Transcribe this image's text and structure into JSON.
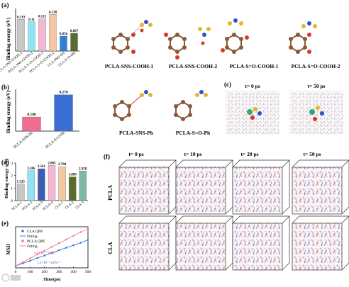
{
  "panels": {
    "a": {
      "label": "(a)",
      "chart_data": {
        "type": "bar",
        "ylabel": "Binding energy (eV)",
        "categories": [
          "PCLA-SNS-COOH-1",
          "PCLA-SNS-COOH-2",
          "PCLA-S=O-COOH-1",
          "PCLA-S=O-COOH-2",
          "CLA-SNS-OH",
          "CLA-S=O-OH"
        ],
        "values": [
          0.119,
          0.11,
          0.121,
          0.138,
          0.056,
          0.067
        ],
        "value_labels": [
          "0.119",
          "0.11",
          "0.121",
          "0.138",
          "0.056",
          "0.067"
        ],
        "colors": [
          "#c8c8c8",
          "#8fe3f2",
          "#f5b6d2",
          "#f4c7a0",
          "#2f7fd8",
          "#5a6b2e"
        ],
        "ylim": [
          0,
          0.16
        ],
        "grid": false
      }
    },
    "b": {
      "label": "(b)",
      "chart_data": {
        "type": "bar",
        "ylabel": "Binding energy (eV)",
        "categories": [
          "PCLA-SNS-Ph",
          "PCLA-S=O-Ph"
        ],
        "values": [
          0.108,
          0.278
        ],
        "value_labels": [
          "0.108",
          "0.278"
        ],
        "colors": [
          "#f06c90",
          "#3c6fd6"
        ],
        "ylim": [
          0,
          0.32
        ],
        "grid": false
      }
    },
    "structures_top": [
      "PCLA-SNS-COOH-1",
      "PCLA-SNS-COOH-2",
      "PCLA-S=O-COOH-1",
      "PCLA-S=O-COOH-2"
    ],
    "structures_mid": [
      "PCLA-SNS-Ph",
      "PCLA-S=O-Ph"
    ],
    "c": {
      "label": "(c)",
      "times": [
        "t= 0 ps",
        "t= 50 ps"
      ]
    },
    "d": {
      "label": "(d)",
      "chart_data": {
        "type": "bar",
        "ylabel": "Binding energy (eV)",
        "categories": [
          "PCLA-1",
          "PCLA-2",
          "PCLA-3",
          "PCLA-4",
          "CLA-1",
          "CLA-2",
          "CLA-3"
        ],
        "values": [
          1.325,
          2.386,
          2.541,
          2.805,
          2.708,
          1.889,
          2.358
        ],
        "value_labels": [
          "1.325",
          "2.386",
          "2.541",
          "2.805",
          "2.708",
          "1.889",
          "2.358"
        ],
        "colors": [
          "#c8c8c8",
          "#8fe3f2",
          "#3a5fb0",
          "#f5b6d2",
          "#f4c7a0",
          "#5a6b2e",
          "#7fb7a0"
        ],
        "yticks": [
          "0",
          "1",
          "2",
          "3"
        ],
        "ylim": [
          0,
          3
        ],
        "grid": false
      }
    },
    "e": {
      "label": "(e)",
      "chart_data": {
        "type": "line",
        "xlabel": "Time(ps)",
        "ylabel": "MSD",
        "xticks": [
          "0",
          "100",
          "200",
          "300",
          "400",
          "500"
        ],
        "xlim": [
          0,
          500
        ],
        "ylim": [
          0,
          1
        ],
        "legend": [
          "CLA QPE",
          "Fitting",
          "PCLA QPE",
          "Fitting"
        ],
        "legend_position": "top-left",
        "annotations": [
          "2.3×10⁻⁹ cm²s⁻¹",
          "1.3×10⁻⁹ cm²s⁻¹"
        ],
        "series": [
          {
            "name": "CLA QPE",
            "color": "#3b7bd4",
            "x": [
              0,
              50,
              100,
              150,
              200,
              250,
              300,
              350,
              400,
              450,
              500
            ],
            "y": [
              0.05,
              0.11,
              0.17,
              0.24,
              0.3,
              0.36,
              0.43,
              0.49,
              0.55,
              0.61,
              0.68
            ]
          },
          {
            "name": "PCLA QPE",
            "color": "#f27aa0",
            "x": [
              0,
              50,
              100,
              150,
              200,
              250,
              300,
              350,
              400,
              450,
              500
            ],
            "y": [
              0.05,
              0.14,
              0.23,
              0.33,
              0.42,
              0.51,
              0.6,
              0.69,
              0.78,
              0.87,
              0.95
            ]
          }
        ]
      }
    },
    "f": {
      "label": "(f)",
      "times": [
        "t= 0 ps",
        "t= 10 ps",
        "t= 20 ps",
        "t= 50 ps"
      ],
      "rows": [
        "PCLA",
        "CLA"
      ]
    }
  }
}
